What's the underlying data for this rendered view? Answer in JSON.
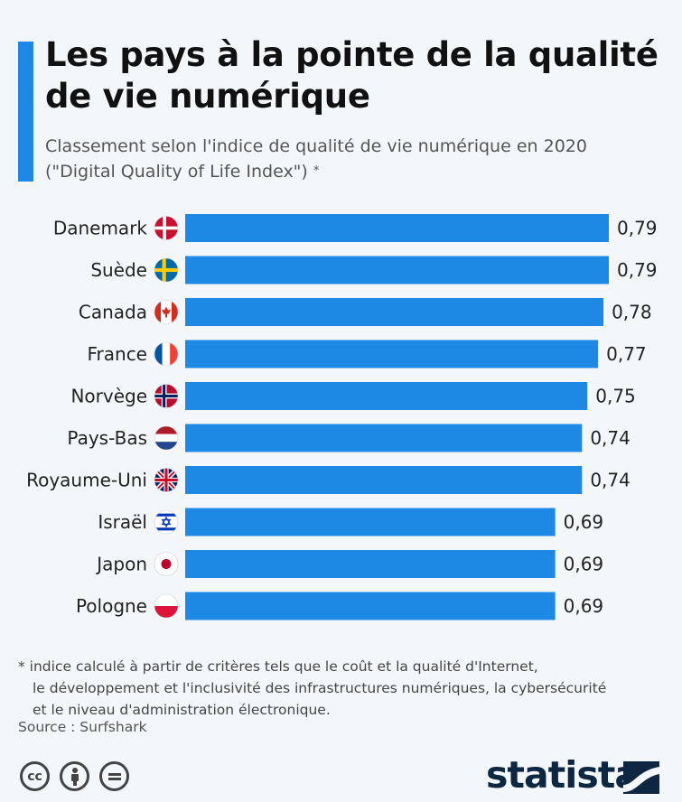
{
  "title": "Les pays à la pointe de la qualité de vie numérique",
  "subtitle": "Classement selon l'indice de qualité de vie numérique en 2020 (\"Digital Quality of Life Index\")",
  "subtitle_mark": "*",
  "footnote": {
    "line1": "* indice calculé à partir de critères tels que le coût et la qualité d'Internet,",
    "line2": "le développement et l'inclusivité des infrastructures numériques, la cybersécurité",
    "line3": "et le niveau d'administration électronique."
  },
  "source": "Source : Surfshark",
  "brand": "statista",
  "colors": {
    "bar": "#1e88e5",
    "accent": "#1e88e5",
    "background": "#f4f7fa",
    "brand": "#0d2742"
  },
  "license_icons": [
    "cc-icon",
    "attribution-icon",
    "no-derivatives-icon"
  ],
  "chart_data": {
    "type": "bar",
    "orientation": "horizontal",
    "categories": [
      "Danemark",
      "Suède",
      "Canada",
      "France",
      "Norvège",
      "Pays-Bas",
      "Royaume-Uni",
      "Israël",
      "Japon",
      "Pologne"
    ],
    "values": [
      0.79,
      0.79,
      0.78,
      0.77,
      0.75,
      0.74,
      0.74,
      0.69,
      0.69,
      0.69
    ],
    "value_labels": [
      "0,79",
      "0,79",
      "0,78",
      "0,77",
      "0,75",
      "0,74",
      "0,74",
      "0,69",
      "0,69",
      "0,69"
    ],
    "flags": [
      "denmark-flag-icon",
      "sweden-flag-icon",
      "canada-flag-icon",
      "france-flag-icon",
      "norway-flag-icon",
      "netherlands-flag-icon",
      "uk-flag-icon",
      "israel-flag-icon",
      "japan-flag-icon",
      "poland-flag-icon"
    ],
    "xlim": [
      0,
      0.79
    ],
    "grid": false,
    "legend": "none"
  }
}
